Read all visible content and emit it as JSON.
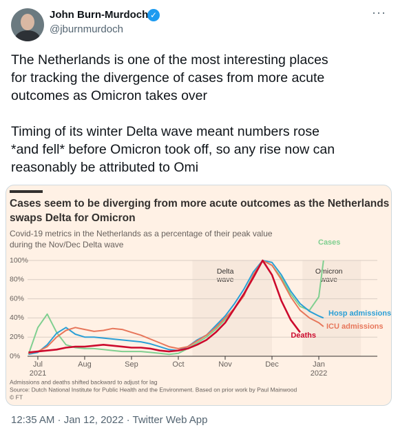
{
  "tweet": {
    "name": "John Burn-Murdoch",
    "handle": "@jburnmurdoch",
    "text_lines": [
      [
        "The Netherlands is one of the most interesting places",
        "for tracking the divergence of cases from more acute",
        "outcomes as Omicron takes over"
      ],
      [
        "Timing of its winter Delta wave meant numbers rose",
        "*and fell* before Omicron took off, so any rise now can",
        "reasonably be attributed to Omi"
      ]
    ],
    "timestamp": "12:35 AM · Jan 12, 2022 · Twitter Web App"
  },
  "chart_data": {
    "type": "line",
    "title_lines": [
      "Cases seem to be diverging from more acute outcomes as the Netherlands",
      "swaps Delta for Omicron"
    ],
    "subtitle_lines": [
      "Covid-19 metrics in the Netherlands as a percentage of their peak value",
      "during the Nov/Dec Delta wave"
    ],
    "notes": [
      "Admissions and deaths shifted backward to adjust for lag",
      "Source: Dutch National Institute for Public Health and the Environment. Based on prior work by Paul Mainwood",
      "© FT"
    ],
    "x": [
      6.8,
      7.0,
      7.2,
      7.4,
      7.6,
      7.8,
      8.0,
      8.2,
      8.4,
      8.6,
      8.8,
      9.0,
      9.2,
      9.4,
      9.6,
      9.8,
      10.0,
      10.2,
      10.4,
      10.6,
      10.8,
      11.0,
      11.2,
      11.4,
      11.6,
      11.8,
      12.0,
      12.2,
      12.4,
      12.6,
      12.8,
      13.0,
      13.1
    ],
    "series": [
      {
        "name": "Cases",
        "color": "#7fcf8f",
        "values": [
          2,
          30,
          44,
          25,
          12,
          9,
          8,
          8,
          7,
          6,
          5,
          5,
          5,
          4,
          3,
          2,
          3,
          8,
          14,
          20,
          28,
          38,
          50,
          65,
          85,
          100,
          95,
          82,
          65,
          52,
          48,
          62,
          100
        ]
      },
      {
        "name": "Hosp admissions",
        "color": "#2a9fd6",
        "values": [
          2,
          4,
          12,
          24,
          30,
          23,
          20,
          20,
          19,
          18,
          17,
          16,
          15,
          13,
          10,
          7,
          6,
          10,
          17,
          22,
          32,
          42,
          55,
          70,
          88,
          100,
          98,
          85,
          68,
          55,
          47,
          42,
          40
        ]
      },
      {
        "name": "ICU admissions",
        "color": "#e7765a",
        "values": [
          3,
          5,
          10,
          20,
          27,
          30,
          28,
          26,
          27,
          29,
          28,
          25,
          22,
          18,
          14,
          10,
          8,
          10,
          16,
          22,
          30,
          40,
          50,
          63,
          85,
          100,
          95,
          80,
          62,
          48,
          40,
          35,
          31
        ]
      },
      {
        "name": "Deaths",
        "color": "#cc0a2d",
        "values": [
          4,
          5,
          6,
          7,
          9,
          10,
          10,
          11,
          12,
          11,
          10,
          9,
          9,
          8,
          6,
          5,
          6,
          8,
          12,
          17,
          25,
          35,
          50,
          65,
          82,
          100,
          85,
          58,
          38,
          25,
          null,
          null,
          null
        ]
      }
    ],
    "shaded_regions": [
      {
        "label_lines": [
          "Delta",
          "wave"
        ],
        "xlim": [
          10.3,
          12.0
        ]
      },
      {
        "label_lines": [
          "Omicron",
          "wave"
        ],
        "xlim": [
          12.65,
          13.9
        ]
      }
    ],
    "xlim": [
      6.78,
      14.25
    ],
    "xticks": [
      {
        "value": 7,
        "label": "Jul",
        "sublabel": "2021"
      },
      {
        "value": 8,
        "label": "Aug"
      },
      {
        "value": 9,
        "label": "Sep"
      },
      {
        "value": 10,
        "label": "Oct"
      },
      {
        "value": 11,
        "label": "Nov"
      },
      {
        "value": 12,
        "label": "Dec"
      },
      {
        "value": 13,
        "label": "Jan",
        "sublabel": "2022"
      }
    ],
    "ylim": [
      0,
      100
    ],
    "yticks": [
      {
        "value": 0,
        "label": "0%"
      },
      {
        "value": 20,
        "label": "20%"
      },
      {
        "value": 40,
        "label": "40%"
      },
      {
        "value": 60,
        "label": "60%"
      },
      {
        "value": 80,
        "label": "80%"
      },
      {
        "value": 100,
        "label": "100%"
      }
    ],
    "grid": true
  }
}
